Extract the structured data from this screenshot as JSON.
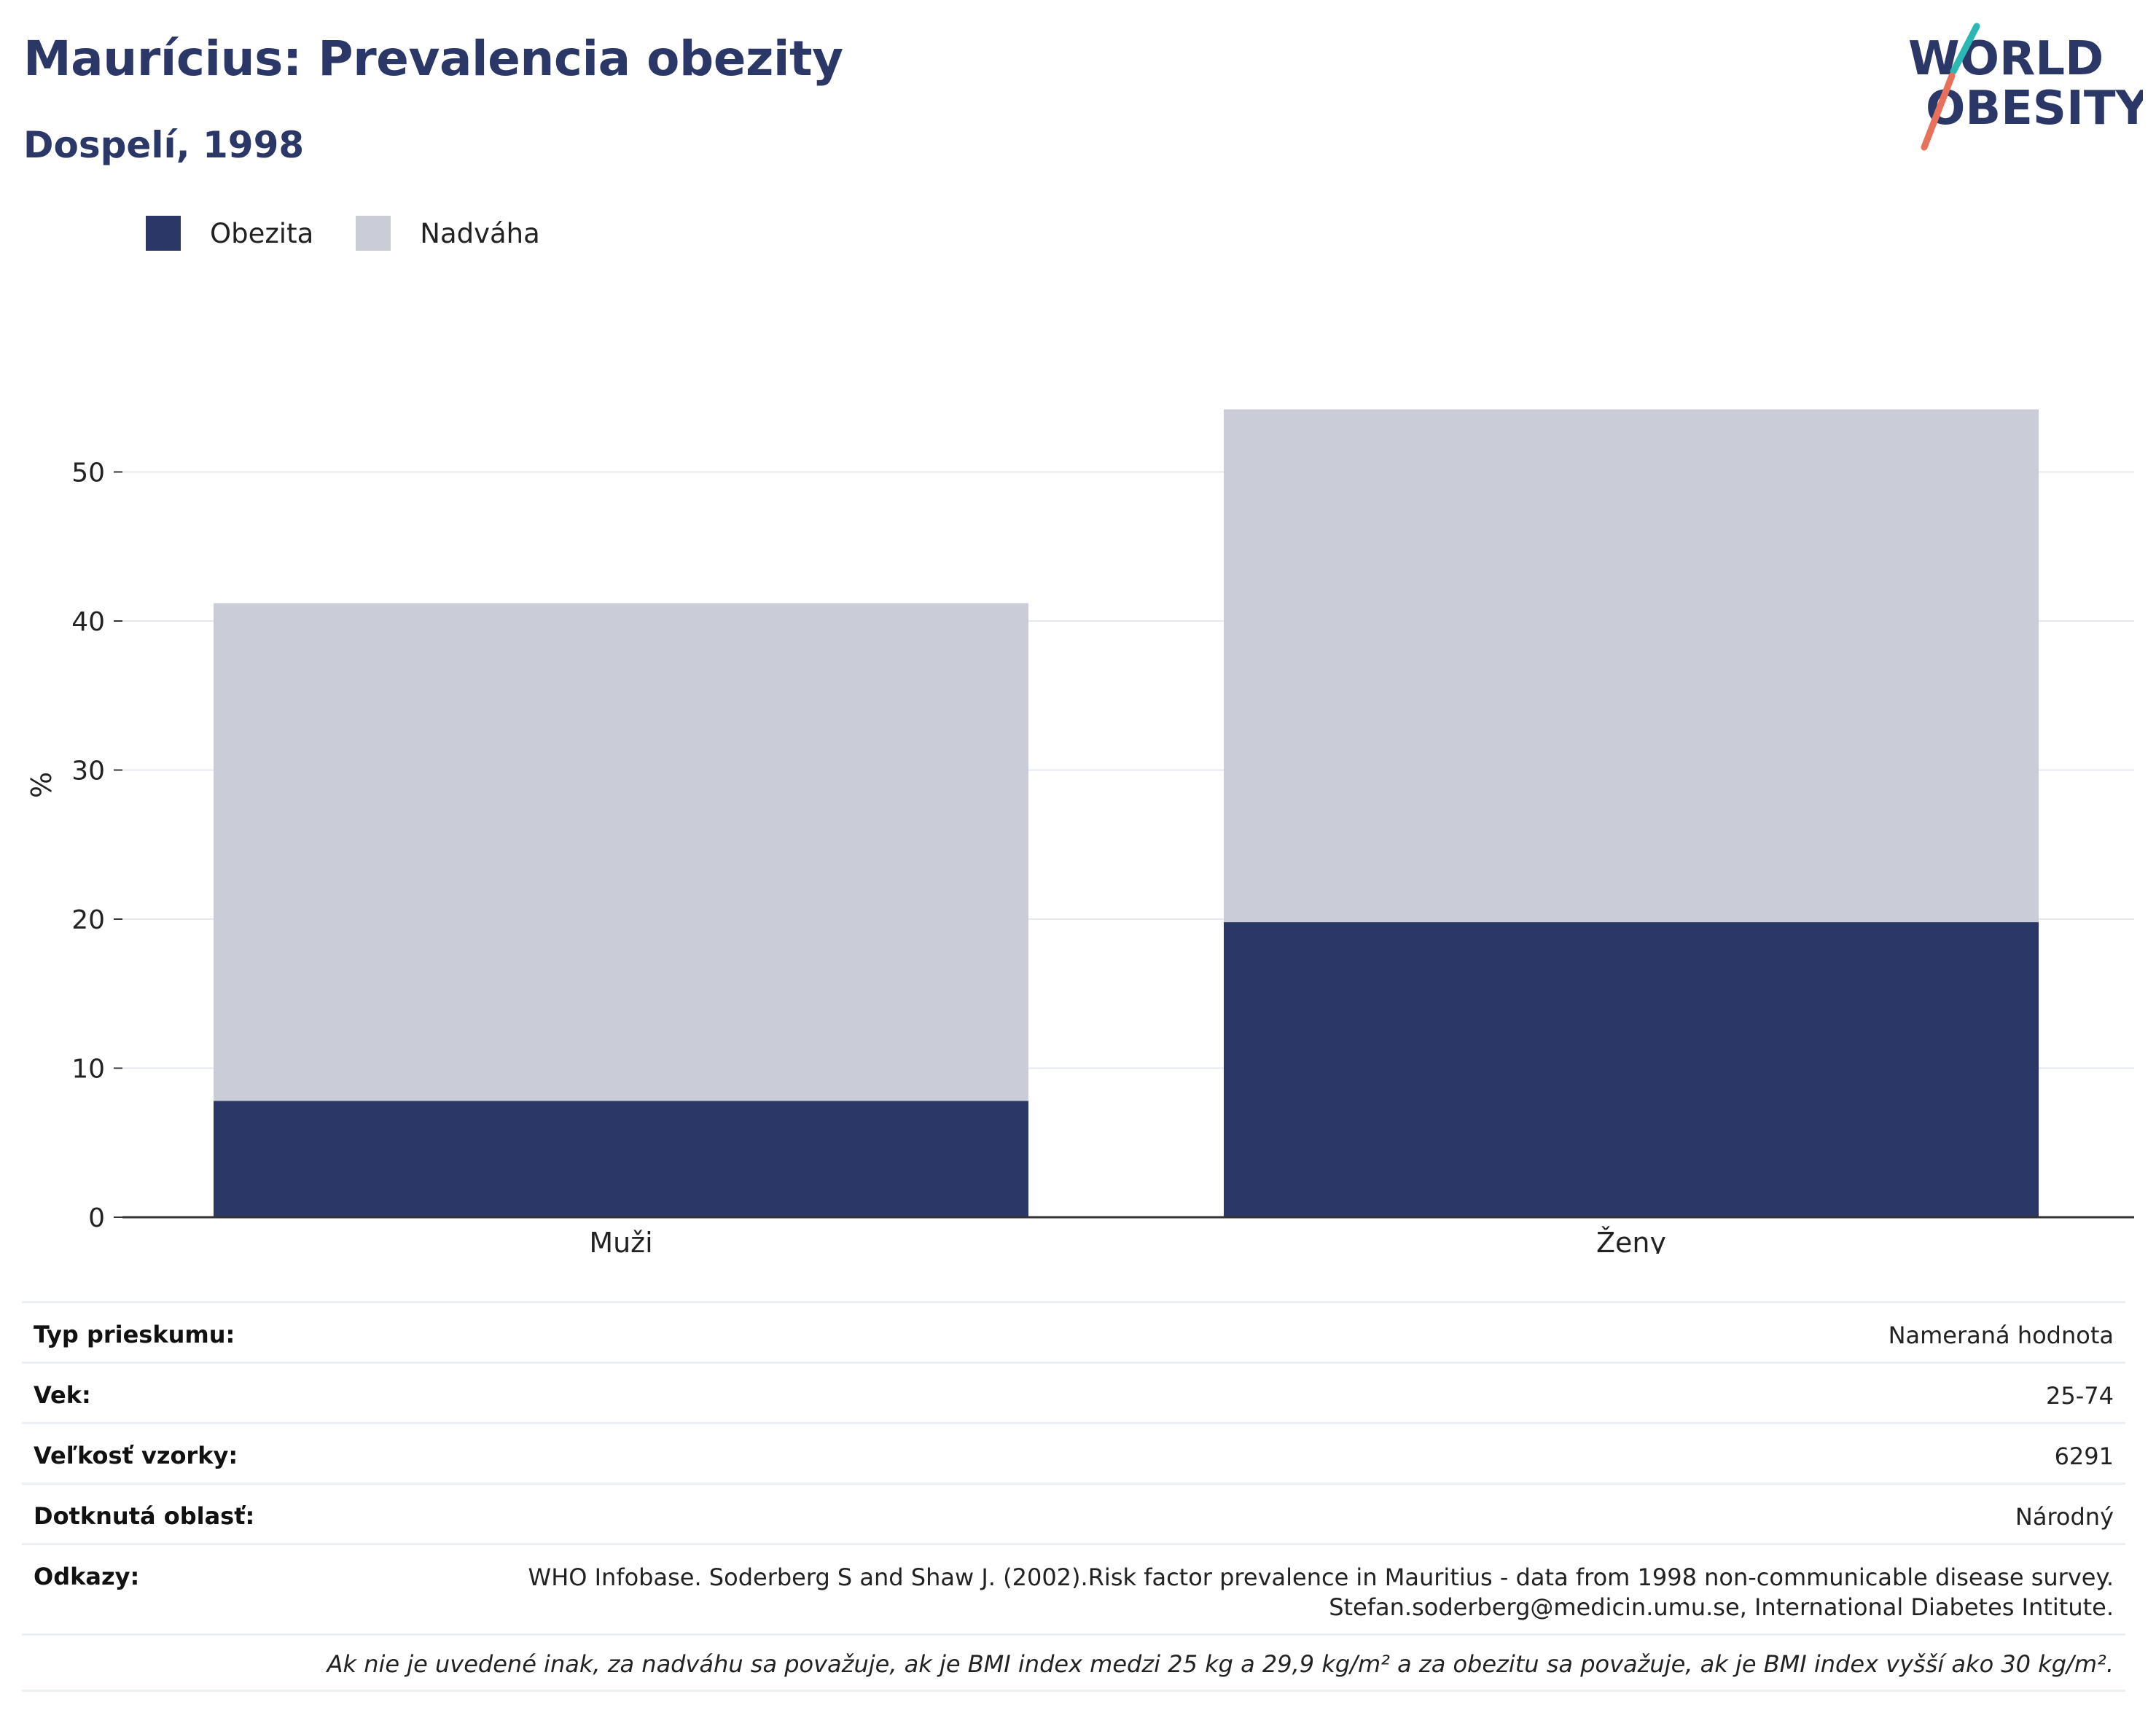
{
  "header": {
    "title": "Maurícius: Prevalencia obezity",
    "subtitle": "Dospelí, 1998"
  },
  "logo": {
    "line1": "WORLD",
    "line2": "OBESITY",
    "colors": {
      "text": "#2b3766",
      "slash_top": "#2bb8b3",
      "slash_bottom": "#e8715c"
    }
  },
  "legend": {
    "items": [
      {
        "label": "Obezita",
        "color": "#2b3766"
      },
      {
        "label": "Nadváha",
        "color": "#cacdd8"
      }
    ]
  },
  "chart_data": {
    "type": "bar",
    "stacked": true,
    "categories": [
      "Muži",
      "Ženy"
    ],
    "series": [
      {
        "name": "Obezita",
        "color": "#2b3766",
        "values": [
          7.8,
          19.8
        ]
      },
      {
        "name": "Nadváha",
        "color": "#cacdd8",
        "values": [
          33.4,
          34.4
        ]
      }
    ],
    "ylabel": "%",
    "ylim": [
      0,
      58
    ],
    "yticks": [
      0,
      10,
      20,
      30,
      40,
      50
    ],
    "grid": true,
    "legend_position": "top-left"
  },
  "info": {
    "rows": [
      {
        "key": "Typ prieskumu:",
        "value": [
          "Nameraná hodnota"
        ]
      },
      {
        "key": "Vek:",
        "value": [
          "25-74"
        ]
      },
      {
        "key": "Veľkosť vzorky:",
        "value": [
          "6291"
        ]
      },
      {
        "key": "Dotknutá oblasť:",
        "value": [
          "Národný"
        ]
      },
      {
        "key": "Odkazy:",
        "value": [
          "WHO Infobase. Soderberg S and Shaw J. (2002).Risk factor prevalence in Mauritius - data from 1998 non-communicable disease survey.",
          "Stefan.soderberg@medicin.umu.se, International Diabetes Intitute."
        ]
      }
    ],
    "note": "Ak nie je uvedené inak, za nadváhu sa považuje, ak je BMI index medzi 25 kg a 29,9 kg/m² a za obezitu sa považuje, ak je BMI index vyšší ako 30 kg/m²."
  }
}
